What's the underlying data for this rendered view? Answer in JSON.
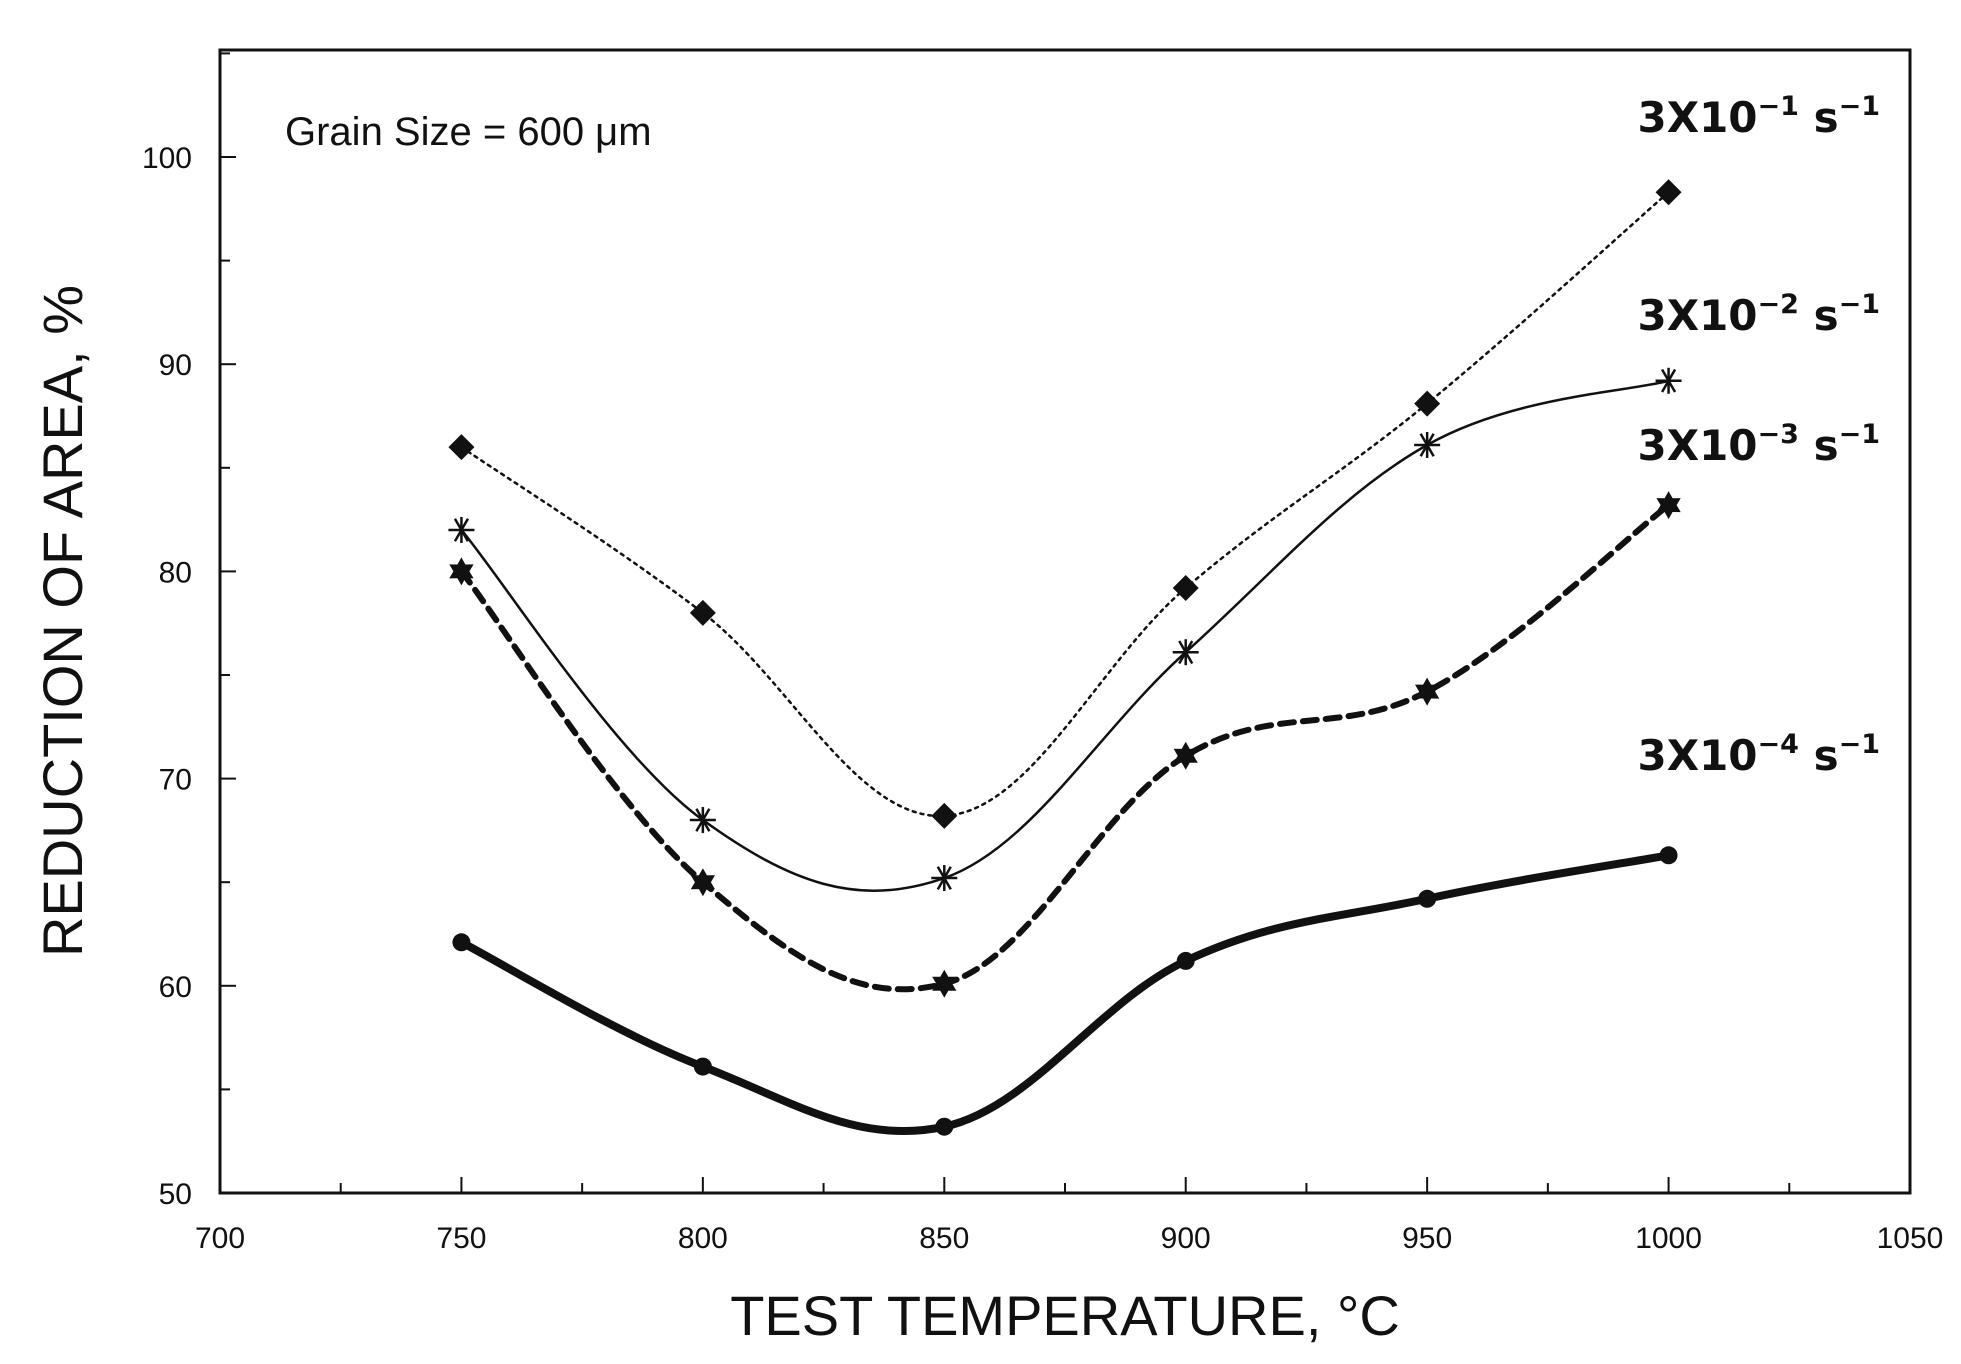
{
  "chart_data": {
    "type": "line",
    "xlabel": "TEST TEMPERATURE, °C",
    "ylabel": "REDUCTION OF AREA, %",
    "annotation": "Grain Size = 600 μm",
    "xlim": [
      700,
      1050
    ],
    "ylim": [
      50,
      105
    ],
    "x_ticks": [
      700,
      750,
      800,
      850,
      900,
      950,
      1000,
      1050
    ],
    "y_ticks": [
      50,
      60,
      70,
      80,
      90,
      100
    ],
    "grid": false,
    "series": [
      {
        "name": "3X10^-1 s^-1",
        "label_base": "3X10",
        "label_exp": "−1",
        "label_unit": "s",
        "label_unit_exp": "−1",
        "marker": "diamond",
        "line_style": "dotted",
        "x": [
          750,
          800,
          850,
          900,
          950,
          1000
        ],
        "y": [
          86,
          78,
          68.2,
          79.2,
          88.1,
          98.3
        ]
      },
      {
        "name": "3X10^-2 s^-1",
        "label_base": "3X10",
        "label_exp": "−2",
        "label_unit": "s",
        "label_unit_exp": "−1",
        "marker": "asterisk",
        "line_style": "solid-thin",
        "x": [
          750,
          800,
          850,
          900,
          950,
          1000
        ],
        "y": [
          82,
          68,
          65.2,
          76.1,
          86.1,
          89.2
        ]
      },
      {
        "name": "3X10^-3 s^-1",
        "label_base": "3X10",
        "label_exp": "−3",
        "label_unit": "s",
        "label_unit_exp": "−1",
        "marker": "star",
        "line_style": "dashed",
        "x": [
          750,
          800,
          850,
          900,
          950,
          1000
        ],
        "y": [
          80,
          65,
          60.1,
          71.1,
          74.2,
          83.2
        ]
      },
      {
        "name": "3X10^-4 s^-1",
        "label_base": "3X10",
        "label_exp": "−4",
        "label_unit": "s",
        "label_unit_exp": "−1",
        "marker": "circle",
        "line_style": "solid-thick",
        "x": [
          750,
          800,
          850,
          900,
          950,
          1000
        ],
        "y": [
          62.1,
          56.1,
          53.2,
          61.2,
          64.2,
          66.3
        ]
      }
    ]
  }
}
